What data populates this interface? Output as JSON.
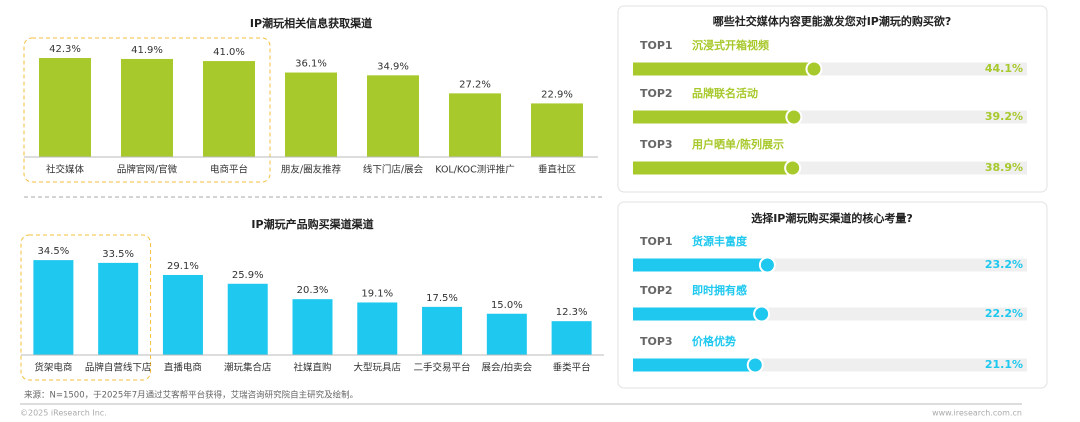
{
  "chart_data": [
    {
      "type": "bar",
      "title": "IP潮玩相关信息获取渠道",
      "categories": [
        "社交媒体",
        "品牌官网/官微",
        "电商平台",
        "朋友/圈友推荐",
        "线下门店/展会",
        "KOL/KOC测评推广",
        "垂直社区"
      ],
      "values": [
        42.3,
        41.9,
        41.0,
        36.1,
        34.9,
        27.2,
        22.9
      ],
      "value_labels": [
        "42.3%",
        "41.9%",
        "41.0%",
        "36.1%",
        "34.9%",
        "27.2%",
        "22.9%"
      ],
      "color": "#a8c92c",
      "ylim": [
        0,
        50
      ]
    },
    {
      "type": "bar",
      "title": "IP潮玩产品购买渠道渠道",
      "categories": [
        "货架电商",
        "品牌自营线下店",
        "直播电商",
        "潮玩集合店",
        "社媒直购",
        "大型玩具店",
        "二手交易平台",
        "展会/拍卖会",
        "垂类平台"
      ],
      "values": [
        34.5,
        33.5,
        29.1,
        25.9,
        20.3,
        19.1,
        17.5,
        15.0,
        12.3
      ],
      "value_labels": [
        "34.5%",
        "33.5%",
        "29.1%",
        "25.9%",
        "20.3%",
        "19.1%",
        "17.5%",
        "15.0%",
        "12.3%"
      ],
      "color": "#1ec8ef",
      "ylim": [
        0,
        50
      ]
    },
    {
      "type": "progress",
      "title": "哪些社交媒体内容更能激发您对IP潮玩的购买欲?",
      "ranks": [
        "TOP1",
        "TOP2",
        "TOP3"
      ],
      "categories": [
        "沉浸式开箱视频",
        "品牌联名活动",
        "用户晒单/陈列展示"
      ],
      "values": [
        44.1,
        39.2,
        38.9
      ],
      "value_labels": [
        "44.1%",
        "39.2%",
        "38.9%"
      ],
      "color": "#a8c92c",
      "xlim": [
        0,
        96
      ]
    },
    {
      "type": "progress",
      "title": "选择IP潮玩购买渠道的核心考量?",
      "ranks": [
        "TOP1",
        "TOP2",
        "TOP3"
      ],
      "categories": [
        "货源丰富度",
        "即时拥有感",
        "价格优势"
      ],
      "values": [
        23.2,
        22.2,
        21.1
      ],
      "value_labels": [
        "23.2%",
        "22.2%",
        "21.1%"
      ],
      "color": "#1ec8ef",
      "xlim": [
        0,
        68
      ]
    }
  ],
  "notes": {
    "source": "来源：N=1500，于2025年7月通过艾客帮平台获得，艾瑞咨询研究院自主研究及绘制。",
    "copyright": "©2025 iResearch Inc.",
    "website": "www.iresearch.com.cn"
  }
}
